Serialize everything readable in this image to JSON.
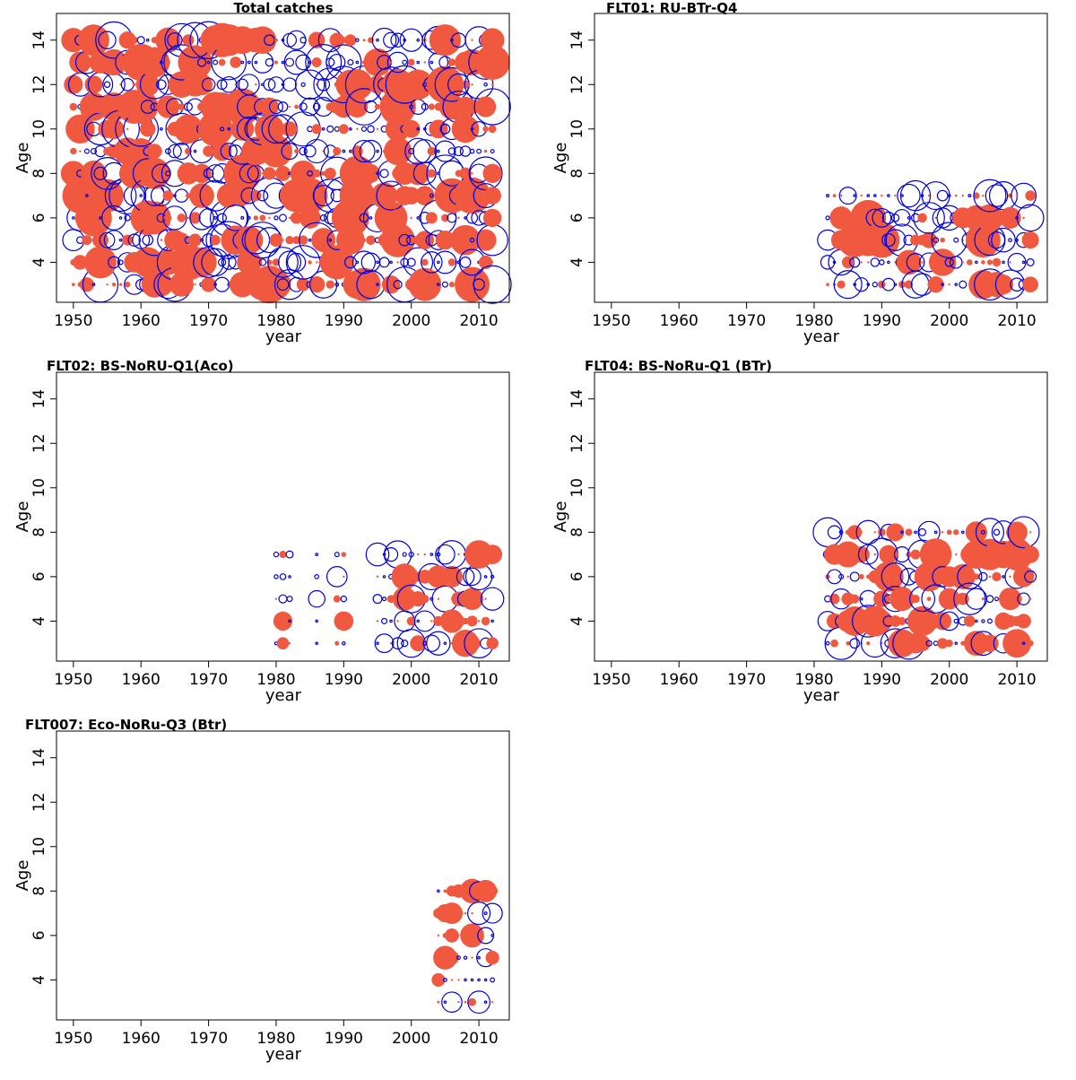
{
  "chart_data": [
    {
      "type": "scatter",
      "subtype": "bubble",
      "title": "Total catches",
      "xlabel": "year",
      "ylabel": "Age",
      "xlim": [
        1947.5,
        2014.5
      ],
      "ylim": [
        2.2,
        15.2
      ],
      "xticks": [
        1950,
        1960,
        1970,
        1980,
        1990,
        2000,
        2010
      ],
      "yticks": [
        4,
        6,
        8,
        10,
        12,
        14
      ],
      "years": [
        1950,
        2012
      ],
      "ages": [
        3,
        14
      ],
      "seed": 11,
      "fill_prob": 0.5,
      "max_radius": 21,
      "grid": false,
      "legend": "none"
    },
    {
      "type": "scatter",
      "subtype": "bubble",
      "title": "FLT01: RU-BTr-Q4",
      "xlabel": "year",
      "ylabel": "Age",
      "xlim": [
        1947.5,
        2014.5
      ],
      "ylim": [
        2.2,
        15.2
      ],
      "xticks": [
        1950,
        1960,
        1970,
        1980,
        1990,
        2000,
        2010
      ],
      "yticks": [
        4,
        6,
        8,
        10,
        12,
        14
      ],
      "years": [
        1982,
        2012
      ],
      "ages": [
        3,
        7
      ],
      "seed": 23,
      "fill_prob": 0.5,
      "max_radius": 20,
      "grid": false,
      "legend": "none"
    },
    {
      "type": "scatter",
      "subtype": "bubble",
      "title": "FLT02: BS-NoRU-Q1(Aco)",
      "xlabel": "year",
      "ylabel": "Age",
      "xlim": [
        1947.5,
        2014.5
      ],
      "ylim": [
        2.2,
        15.2
      ],
      "xticks": [
        1950,
        1960,
        1970,
        1980,
        1990,
        2000,
        2010
      ],
      "yticks": [
        4,
        6,
        8,
        10,
        12,
        14
      ],
      "years": [
        1980,
        2012
      ],
      "ages": [
        3,
        7
      ],
      "seed": 37,
      "fill_prob": 0.5,
      "max_radius": 17,
      "skip": [
        [
          1983,
          1985
        ],
        [
          1987,
          1988
        ],
        [
          1991,
          1994
        ]
      ],
      "grid": false,
      "legend": "none"
    },
    {
      "type": "scatter",
      "subtype": "bubble",
      "title": "FLT04: BS-NoRu-Q1 (BTr)",
      "xlabel": "year",
      "ylabel": "Age",
      "xlim": [
        1947.5,
        2014.5
      ],
      "ylim": [
        2.2,
        15.2
      ],
      "xticks": [
        1950,
        1960,
        1970,
        1980,
        1990,
        2000,
        2010
      ],
      "yticks": [
        4,
        6,
        8,
        10,
        12,
        14
      ],
      "years": [
        1982,
        2012
      ],
      "ages": [
        3,
        8
      ],
      "seed": 51,
      "fill_prob": 0.5,
      "max_radius": 18,
      "grid": false,
      "legend": "none"
    },
    {
      "type": "scatter",
      "subtype": "bubble",
      "title": "FLT007: Eco-NoRu-Q3 (Btr)",
      "xlabel": "year",
      "ylabel": "Age",
      "xlim": [
        1947.5,
        2014.5
      ],
      "ylim": [
        2.2,
        15.2
      ],
      "xticks": [
        1950,
        1960,
        1970,
        1980,
        1990,
        2000,
        2010
      ],
      "yticks": [
        4,
        6,
        8,
        10,
        12,
        14
      ],
      "years": [
        2004,
        2012
      ],
      "ages": [
        3,
        8
      ],
      "seed": 67,
      "fill_prob": 0.5,
      "max_radius": 14,
      "grid": false,
      "legend": "none"
    }
  ],
  "colors": {
    "positive_fill": "#f0593f",
    "negative_stroke": "#0000dd",
    "axis": "#000000"
  }
}
